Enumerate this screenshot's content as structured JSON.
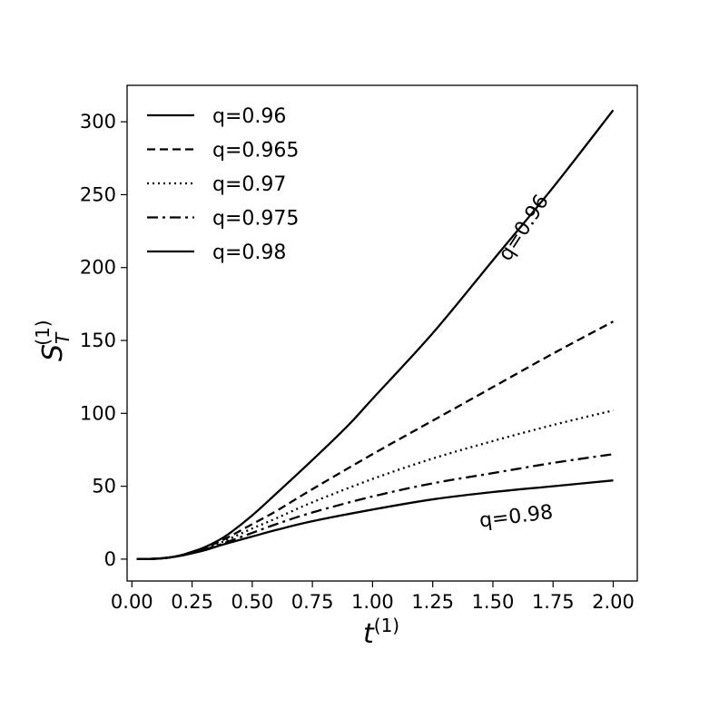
{
  "chart_data": {
    "type": "line",
    "xlabel_main": "t",
    "xlabel_sup": "(1)",
    "ylabel_main": "S",
    "ylabel_sub": "T",
    "ylabel_sup": "(1)",
    "xlim": [
      -0.02,
      2.1
    ],
    "ylim": [
      -15,
      325
    ],
    "xticks": [
      0.0,
      0.25,
      0.5,
      0.75,
      1.0,
      1.25,
      1.5,
      1.75,
      2.0
    ],
    "xtick_labels": [
      "0.00",
      "0.25",
      "0.50",
      "0.75",
      "1.00",
      "1.25",
      "1.50",
      "1.75",
      "2.00"
    ],
    "yticks": [
      0,
      50,
      100,
      150,
      200,
      250,
      300
    ],
    "ytick_labels": [
      "0",
      "50",
      "100",
      "150",
      "200",
      "250",
      "300"
    ],
    "grid": false,
    "legend_position": "top-left",
    "annotations": [
      {
        "text": "q=0.96",
        "x": 1.65,
        "y": 225,
        "rotation": -57
      },
      {
        "text": "q=0.98",
        "x": 1.6,
        "y": 25,
        "rotation": -7
      }
    ],
    "series": [
      {
        "name": "q=0.96",
        "style": "solid",
        "x": [
          0.02,
          0.1,
          0.15,
          0.2,
          0.25,
          0.3,
          0.35,
          0.4,
          0.5,
          0.6,
          0.75,
          0.9,
          1.0,
          1.25,
          1.5,
          1.75,
          2.0
        ],
        "y": [
          0,
          0.3,
          1,
          2.5,
          5,
          8,
          12,
          17,
          30,
          45,
          68,
          92,
          110,
          155,
          205,
          255,
          308
        ]
      },
      {
        "name": "q=0.965",
        "style": "dashed",
        "x": [
          0.02,
          0.1,
          0.15,
          0.2,
          0.25,
          0.3,
          0.35,
          0.4,
          0.5,
          0.6,
          0.75,
          1.0,
          1.25,
          1.5,
          1.75,
          2.0
        ],
        "y": [
          0,
          0.3,
          1,
          2.5,
          5,
          7.5,
          11,
          15,
          24,
          33,
          48,
          72,
          95,
          118,
          141,
          163
        ]
      },
      {
        "name": "q=0.97",
        "style": "dotted",
        "x": [
          0.02,
          0.1,
          0.15,
          0.2,
          0.25,
          0.3,
          0.35,
          0.4,
          0.5,
          0.6,
          0.75,
          1.0,
          1.25,
          1.5,
          1.75,
          2.0
        ],
        "y": [
          0,
          0.3,
          1,
          2.4,
          4.5,
          7,
          10,
          13.5,
          21,
          28,
          39,
          55,
          69,
          81,
          92,
          102
        ]
      },
      {
        "name": "q=0.975",
        "style": "dashdot",
        "x": [
          0.02,
          0.1,
          0.15,
          0.2,
          0.25,
          0.3,
          0.35,
          0.4,
          0.5,
          0.6,
          0.75,
          1.0,
          1.25,
          1.5,
          1.75,
          2.0
        ],
        "y": [
          0,
          0.3,
          1,
          2.3,
          4.3,
          6.5,
          9,
          12,
          18,
          24,
          32,
          43,
          52,
          59,
          66,
          72
        ]
      },
      {
        "name": "q=0.98",
        "style": "solid",
        "x": [
          0.02,
          0.1,
          0.15,
          0.2,
          0.25,
          0.3,
          0.35,
          0.4,
          0.5,
          0.6,
          0.75,
          1.0,
          1.25,
          1.5,
          1.75,
          2.0
        ],
        "y": [
          0,
          0.3,
          1,
          2.2,
          4,
          6,
          8.5,
          11,
          15.5,
          20,
          26,
          34,
          41,
          46,
          50,
          54
        ]
      }
    ]
  }
}
